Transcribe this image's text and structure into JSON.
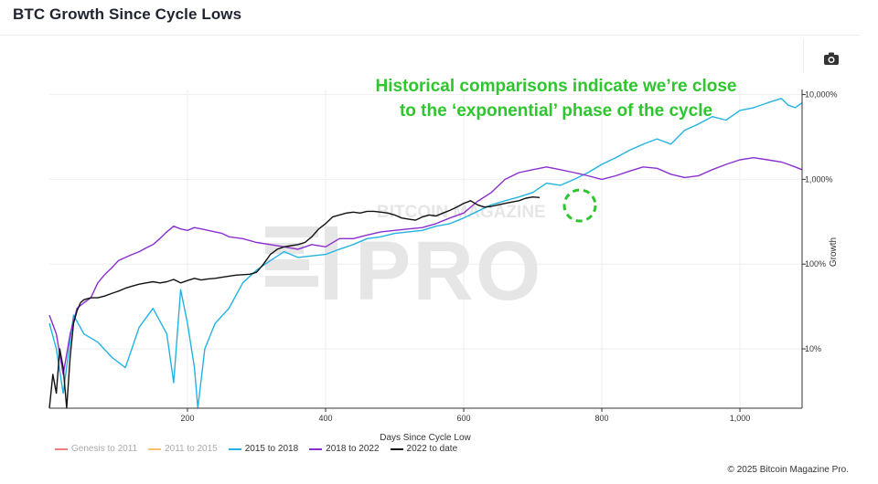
{
  "header": {
    "title": "BTC Growth Since Cycle Lows"
  },
  "toolbar": {
    "camera_icon": "camera-icon"
  },
  "annotation": {
    "line1": "Historical comparisons indicate we’re close",
    "line2": "to the ‘exponential’ phase of the cycle",
    "color": "#2ec52e"
  },
  "watermark": {
    "top": "BITCOIN MAGAZINE",
    "main": "PRO"
  },
  "footer": {
    "copyright": "© 2025 Bitcoin Magazine Pro."
  },
  "chart_data": {
    "type": "line",
    "title": "BTC Growth Since Cycle Lows",
    "xlabel": "Days Since Cycle Low",
    "ylabel": "Growth",
    "xlim": [
      0,
      1090
    ],
    "ylim_log10": [
      0.3,
      4.06
    ],
    "y_scale": "log",
    "x_ticks": [
      200,
      400,
      600,
      800,
      1000
    ],
    "x_tick_labels": [
      "200",
      "400",
      "600",
      "800",
      "1,000"
    ],
    "y_ticks": [
      10,
      100,
      1000,
      10000
    ],
    "y_tick_labels": [
      "10%",
      "100%",
      "1,000%",
      "10,000%"
    ],
    "grid": true,
    "legend_position": "bottom-left",
    "series": [
      {
        "name": "Genesis to 2011",
        "color": "#f08080",
        "visible": false,
        "points": []
      },
      {
        "name": "2011 to 2015",
        "color": "#f5c36b",
        "visible": false,
        "points": []
      },
      {
        "name": "2015 to 2018",
        "color": "#22b3e2",
        "visible": true,
        "points": [
          [
            0,
            20
          ],
          [
            10,
            10
          ],
          [
            20,
            3
          ],
          [
            35,
            25
          ],
          [
            50,
            15
          ],
          [
            70,
            12
          ],
          [
            90,
            8
          ],
          [
            110,
            6
          ],
          [
            130,
            18
          ],
          [
            150,
            30
          ],
          [
            170,
            15
          ],
          [
            180,
            4
          ],
          [
            190,
            50
          ],
          [
            200,
            20
          ],
          [
            210,
            6
          ],
          [
            215,
            2
          ],
          [
            225,
            10
          ],
          [
            240,
            20
          ],
          [
            260,
            30
          ],
          [
            280,
            60
          ],
          [
            300,
            85
          ],
          [
            320,
            110
          ],
          [
            340,
            140
          ],
          [
            360,
            120
          ],
          [
            380,
            125
          ],
          [
            400,
            130
          ],
          [
            420,
            150
          ],
          [
            440,
            170
          ],
          [
            460,
            200
          ],
          [
            480,
            210
          ],
          [
            500,
            230
          ],
          [
            520,
            240
          ],
          [
            540,
            250
          ],
          [
            560,
            280
          ],
          [
            580,
            300
          ],
          [
            600,
            350
          ],
          [
            620,
            420
          ],
          [
            640,
            500
          ],
          [
            660,
            560
          ],
          [
            680,
            620
          ],
          [
            700,
            700
          ],
          [
            720,
            900
          ],
          [
            740,
            850
          ],
          [
            760,
            1000
          ],
          [
            780,
            1200
          ],
          [
            800,
            1500
          ],
          [
            820,
            1800
          ],
          [
            840,
            2200
          ],
          [
            860,
            2600
          ],
          [
            880,
            3000
          ],
          [
            900,
            2600
          ],
          [
            920,
            3800
          ],
          [
            940,
            4500
          ],
          [
            960,
            5500
          ],
          [
            980,
            5000
          ],
          [
            1000,
            6500
          ],
          [
            1020,
            7000
          ],
          [
            1040,
            8000
          ],
          [
            1060,
            9000
          ],
          [
            1070,
            7500
          ],
          [
            1080,
            7000
          ],
          [
            1090,
            8000
          ]
        ]
      },
      {
        "name": "2018 to 2022",
        "color": "#8b2fd0",
        "visible": true,
        "points": [
          [
            0,
            25
          ],
          [
            10,
            15
          ],
          [
            20,
            5
          ],
          [
            30,
            15
          ],
          [
            40,
            30
          ],
          [
            50,
            35
          ],
          [
            60,
            40
          ],
          [
            70,
            60
          ],
          [
            80,
            75
          ],
          [
            90,
            90
          ],
          [
            100,
            110
          ],
          [
            110,
            120
          ],
          [
            120,
            130
          ],
          [
            130,
            140
          ],
          [
            140,
            155
          ],
          [
            150,
            170
          ],
          [
            160,
            200
          ],
          [
            170,
            240
          ],
          [
            180,
            280
          ],
          [
            190,
            260
          ],
          [
            200,
            250
          ],
          [
            210,
            270
          ],
          [
            220,
            260
          ],
          [
            230,
            250
          ],
          [
            240,
            240
          ],
          [
            250,
            230
          ],
          [
            260,
            210
          ],
          [
            280,
            200
          ],
          [
            300,
            180
          ],
          [
            320,
            170
          ],
          [
            340,
            160
          ],
          [
            360,
            150
          ],
          [
            380,
            170
          ],
          [
            400,
            160
          ],
          [
            420,
            200
          ],
          [
            440,
            200
          ],
          [
            460,
            220
          ],
          [
            480,
            240
          ],
          [
            500,
            250
          ],
          [
            520,
            260
          ],
          [
            540,
            270
          ],
          [
            560,
            300
          ],
          [
            580,
            350
          ],
          [
            600,
            400
          ],
          [
            620,
            550
          ],
          [
            640,
            700
          ],
          [
            660,
            1000
          ],
          [
            680,
            1200
          ],
          [
            700,
            1300
          ],
          [
            720,
            1400
          ],
          [
            740,
            1300
          ],
          [
            760,
            1200
          ],
          [
            780,
            1100
          ],
          [
            800,
            1000
          ],
          [
            820,
            1100
          ],
          [
            840,
            1250
          ],
          [
            860,
            1400
          ],
          [
            880,
            1350
          ],
          [
            900,
            1150
          ],
          [
            920,
            1050
          ],
          [
            940,
            1100
          ],
          [
            960,
            1300
          ],
          [
            980,
            1500
          ],
          [
            1000,
            1700
          ],
          [
            1020,
            1800
          ],
          [
            1040,
            1700
          ],
          [
            1060,
            1600
          ],
          [
            1070,
            1500
          ],
          [
            1080,
            1400
          ],
          [
            1090,
            1300
          ]
        ]
      },
      {
        "name": "2022 to date",
        "color": "#111111",
        "visible": true,
        "points": [
          [
            0,
            2
          ],
          [
            5,
            5
          ],
          [
            10,
            3
          ],
          [
            15,
            10
          ],
          [
            20,
            6
          ],
          [
            25,
            2
          ],
          [
            30,
            8
          ],
          [
            35,
            20
          ],
          [
            40,
            28
          ],
          [
            45,
            35
          ],
          [
            50,
            38
          ],
          [
            60,
            40
          ],
          [
            70,
            40
          ],
          [
            80,
            42
          ],
          [
            90,
            45
          ],
          [
            100,
            48
          ],
          [
            110,
            52
          ],
          [
            120,
            55
          ],
          [
            130,
            58
          ],
          [
            140,
            60
          ],
          [
            150,
            62
          ],
          [
            160,
            60
          ],
          [
            170,
            62
          ],
          [
            180,
            66
          ],
          [
            190,
            60
          ],
          [
            200,
            64
          ],
          [
            210,
            68
          ],
          [
            220,
            65
          ],
          [
            230,
            67
          ],
          [
            240,
            68
          ],
          [
            250,
            70
          ],
          [
            260,
            72
          ],
          [
            270,
            74
          ],
          [
            280,
            75
          ],
          [
            290,
            76
          ],
          [
            300,
            80
          ],
          [
            310,
            100
          ],
          [
            320,
            130
          ],
          [
            330,
            150
          ],
          [
            340,
            160
          ],
          [
            350,
            165
          ],
          [
            360,
            170
          ],
          [
            370,
            180
          ],
          [
            380,
            210
          ],
          [
            390,
            260
          ],
          [
            400,
            300
          ],
          [
            410,
            360
          ],
          [
            420,
            380
          ],
          [
            430,
            400
          ],
          [
            440,
            410
          ],
          [
            450,
            400
          ],
          [
            460,
            420
          ],
          [
            470,
            420
          ],
          [
            480,
            410
          ],
          [
            490,
            400
          ],
          [
            500,
            380
          ],
          [
            510,
            350
          ],
          [
            520,
            340
          ],
          [
            530,
            330
          ],
          [
            540,
            360
          ],
          [
            550,
            380
          ],
          [
            560,
            370
          ],
          [
            570,
            400
          ],
          [
            580,
            430
          ],
          [
            590,
            470
          ],
          [
            600,
            520
          ],
          [
            610,
            560
          ],
          [
            620,
            500
          ],
          [
            630,
            470
          ],
          [
            640,
            480
          ],
          [
            650,
            500
          ],
          [
            660,
            520
          ],
          [
            670,
            540
          ],
          [
            680,
            560
          ],
          [
            690,
            600
          ],
          [
            700,
            620
          ],
          [
            710,
            610
          ]
        ]
      }
    ]
  }
}
